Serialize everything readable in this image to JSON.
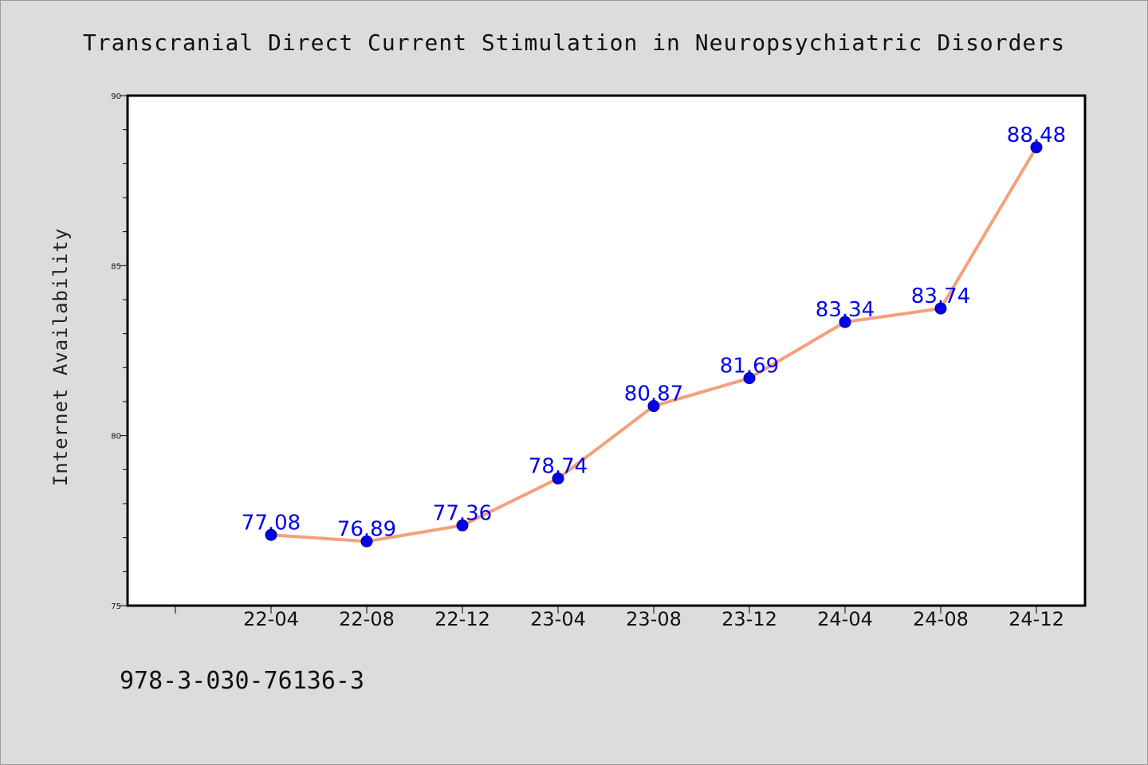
{
  "footer": {
    "isbn": "978-3-030-76136-3"
  },
  "colors": {
    "line": "#f4a07c",
    "marker": "#0000ee",
    "data_label": "#0000ee",
    "background": "#dcdcdc",
    "plot_background": "#ffffff"
  },
  "chart_data": {
    "type": "line",
    "title": "Transcranial Direct Current Stimulation in Neuropsychiatric Disorders",
    "xlabel": "",
    "ylabel": "Internet Availability",
    "categories": [
      "22-04",
      "22-08",
      "22-12",
      "23-04",
      "23-08",
      "23-12",
      "24-04",
      "24-08",
      "24-12"
    ],
    "series": [
      {
        "values": [
          77.08,
          76.89,
          77.36,
          78.74,
          80.87,
          81.69,
          83.34,
          83.74,
          88.48
        ]
      }
    ],
    "data_labels": [
      "77.08",
      "76.89",
      "77.36",
      "78.74",
      "80.87",
      "81.69",
      "83.34",
      "83.74",
      "88.48"
    ],
    "ylim": [
      75,
      90
    ],
    "yticks": [
      75,
      80,
      85,
      90
    ],
    "ytick_labels": [
      "75",
      "80",
      "85",
      "90"
    ],
    "grid": false,
    "legend": "none"
  }
}
